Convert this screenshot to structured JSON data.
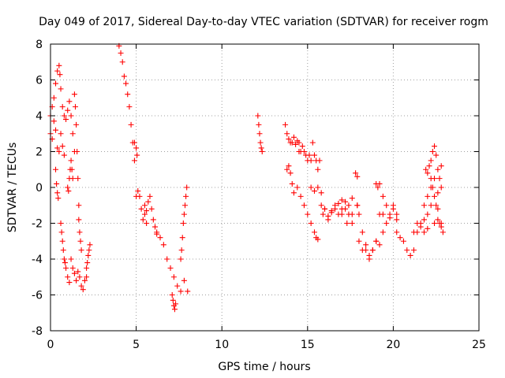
{
  "chart_data": {
    "type": "scatter",
    "title": "Day 049 of 2017, Sidereal Day-to-day VTEC variation (SDTVAR) for receiver rogm",
    "xlabel": "GPS time / hours",
    "ylabel": "SDTVAR / TECUs",
    "xlim": [
      0,
      25
    ],
    "ylim": [
      -8,
      8
    ],
    "xticks": [
      0,
      5,
      10,
      15,
      20,
      25
    ],
    "yticks": [
      -8,
      -6,
      -4,
      -2,
      0,
      2,
      4,
      6,
      8
    ],
    "xtick_labels": [
      "0",
      "5",
      "10",
      "15",
      "20",
      "25"
    ],
    "ytick_labels": [
      "-8",
      "-6",
      "-4",
      "-2",
      "0",
      "2",
      "4",
      "6",
      "8"
    ],
    "grid": true,
    "marker": "+",
    "marker_color": "#ff0000",
    "series": [
      {
        "name": "SDTVAR",
        "tracks": [
          {
            "x": [
              0.0,
              0.1,
              0.2,
              0.3,
              0.4,
              0.5,
              0.55
            ],
            "y": [
              4.0,
              4.5,
              5.0,
              5.8,
              6.5,
              6.8,
              6.3
            ]
          },
          {
            "x": [
              0.0,
              0.1,
              0.2,
              0.3,
              0.4,
              0.5,
              0.6,
              0.7,
              0.8
            ],
            "y": [
              3.0,
              2.7,
              3.7,
              3.2,
              2.2,
              2.0,
              3.0,
              2.3,
              1.8
            ]
          },
          {
            "x": [
              0.6,
              0.7,
              0.8,
              0.9,
              1.0,
              1.1,
              1.2,
              1.3,
              1.4
            ],
            "y": [
              5.5,
              4.5,
              4.0,
              3.8,
              4.3,
              4.8,
              4.0,
              3.0,
              2.0
            ]
          },
          {
            "x": [
              0.3,
              0.35,
              0.4,
              0.45
            ],
            "y": [
              1.0,
              0.2,
              -0.3,
              -0.6
            ]
          },
          {
            "x": [
              0.6,
              0.65,
              0.7,
              0.75,
              0.8,
              0.85,
              0.9,
              1.0,
              1.1
            ],
            "y": [
              -2.0,
              -2.5,
              -3.0,
              -3.5,
              -4.0,
              -4.2,
              -4.5,
              -5.0,
              -5.3
            ]
          },
          {
            "x": [
              1.0,
              1.05,
              1.1,
              1.15,
              1.2,
              1.25,
              1.3
            ],
            "y": [
              0.0,
              -0.2,
              0.5,
              1.0,
              1.5,
              1.0,
              0.5
            ]
          },
          {
            "x": [
              1.2,
              1.3,
              1.4,
              1.5,
              1.6,
              1.7,
              1.8,
              1.9,
              2.0,
              2.1
            ],
            "y": [
              -4.0,
              -4.5,
              -4.8,
              -5.2,
              -4.7,
              -5.0,
              -5.5,
              -5.7,
              -5.2,
              -5.0
            ]
          },
          {
            "x": [
              1.4,
              1.45,
              1.5,
              1.55,
              1.6,
              1.65
            ],
            "y": [
              5.2,
              4.5,
              3.5,
              2.0,
              0.5,
              -1.0
            ]
          },
          {
            "x": [
              1.65,
              1.7,
              1.75,
              1.8
            ],
            "y": [
              -1.8,
              -2.5,
              -3.0,
              -3.5
            ]
          },
          {
            "x": [
              2.1,
              2.15,
              2.2,
              2.25,
              2.3
            ],
            "y": [
              -4.5,
              -4.2,
              -3.8,
              -3.5,
              -3.2
            ]
          },
          {
            "x": [
              4.0,
              4.1,
              4.2,
              4.3,
              4.4,
              4.5,
              4.6,
              4.7,
              4.8,
              4.9
            ],
            "y": [
              7.9,
              7.5,
              7.0,
              6.2,
              5.8,
              5.2,
              4.5,
              3.5,
              2.5,
              1.5
            ]
          },
          {
            "x": [
              4.9,
              5.0,
              5.05
            ],
            "y": [
              2.5,
              2.2,
              1.8
            ]
          },
          {
            "x": [
              5.0,
              5.1,
              5.2,
              5.3,
              5.4,
              5.5,
              5.6
            ],
            "y": [
              -0.5,
              -0.2,
              -0.5,
              -1.2,
              -1.8,
              -1.5,
              -2.0
            ]
          },
          {
            "x": [
              5.5,
              5.6,
              5.7,
              5.8,
              5.9,
              6.0,
              6.1,
              6.2
            ],
            "y": [
              -1.0,
              -1.3,
              -0.8,
              -0.5,
              -1.2,
              -1.8,
              -2.2,
              -2.5
            ]
          },
          {
            "x": [
              6.2,
              6.4,
              6.6,
              6.8,
              7.0,
              7.2,
              7.4,
              7.6,
              7.8,
              8.0
            ],
            "y": [
              -2.6,
              -2.8,
              -3.2,
              -4.0,
              -4.5,
              -5.0,
              -5.5,
              -5.8,
              -5.2,
              -5.8
            ]
          },
          {
            "x": [
              7.1,
              7.15,
              7.2,
              7.25,
              7.3
            ],
            "y": [
              -6.0,
              -6.3,
              -6.6,
              -6.8,
              -6.5
            ]
          },
          {
            "x": [
              7.6,
              7.65,
              7.7,
              7.75,
              7.8,
              7.85,
              7.9,
              7.95
            ],
            "y": [
              -4.0,
              -3.5,
              -2.8,
              -2.0,
              -1.5,
              -1.0,
              -0.5,
              0.0
            ]
          },
          {
            "x": [
              12.1,
              12.15,
              12.2,
              12.25,
              12.3,
              12.35
            ],
            "y": [
              4.0,
              3.5,
              3.0,
              2.5,
              2.2,
              2.0
            ]
          },
          {
            "x": [
              13.7,
              13.8,
              13.9,
              14.0,
              14.1,
              14.2,
              14.3,
              14.4,
              14.5
            ],
            "y": [
              3.5,
              3.0,
              2.7,
              2.5,
              2.5,
              2.8,
              2.4,
              2.6,
              2.0
            ]
          },
          {
            "x": [
              14.5,
              14.6,
              14.7,
              14.8,
              14.9,
              15.0,
              15.1,
              15.2
            ],
            "y": [
              2.5,
              2.0,
              2.3,
              2.0,
              1.8,
              1.5,
              1.8,
              1.5
            ]
          },
          {
            "x": [
              15.3,
              15.4,
              15.5,
              15.6,
              15.7
            ],
            "y": [
              2.5,
              1.8,
              1.5,
              1.0,
              1.5
            ]
          },
          {
            "x": [
              13.8,
              13.9,
              14.0,
              14.1,
              14.2,
              14.4,
              14.6,
              14.8,
              15.0,
              15.2,
              15.4,
              15.5,
              15.6
            ],
            "y": [
              1.0,
              1.2,
              0.8,
              0.2,
              -0.3,
              0.0,
              -0.5,
              -1.0,
              -1.5,
              -2.0,
              -2.5,
              -2.8,
              -2.9
            ]
          },
          {
            "x": [
              15.2,
              15.4,
              15.6,
              15.8
            ],
            "y": [
              0.0,
              -0.2,
              0.0,
              -0.3
            ]
          },
          {
            "x": [
              15.8,
              15.9,
              16.0,
              16.2,
              16.4,
              16.6,
              16.8,
              17.0,
              17.2,
              17.4,
              17.6
            ],
            "y": [
              -1.0,
              -1.5,
              -1.2,
              -1.8,
              -1.3,
              -1.0,
              -1.5,
              -1.2,
              -0.8,
              -1.0,
              -0.6
            ]
          },
          {
            "x": [
              16.0,
              16.2,
              16.4,
              16.6,
              16.8,
              17.0,
              17.2,
              17.4,
              17.6
            ],
            "y": [
              -1.2,
              -1.6,
              -1.4,
              -1.2,
              -0.9,
              -0.7,
              -1.2,
              -1.5,
              -2.0
            ]
          },
          {
            "x": [
              17.0,
              17.3,
              17.6,
              17.9
            ],
            "y": [
              -1.5,
              -2.0,
              -1.5,
              -1.0
            ]
          },
          {
            "x": [
              17.8,
              17.9
            ],
            "y": [
              0.8,
              0.6
            ]
          },
          {
            "x": [
              17.9,
              18.0,
              18.2,
              18.4,
              18.6,
              18.8,
              19.0,
              19.2,
              19.4
            ],
            "y": [
              -1.0,
              -1.5,
              -2.5,
              -3.5,
              -4.0,
              -3.5,
              -3.0,
              -3.2,
              -2.5
            ]
          },
          {
            "x": [
              18.0,
              18.2,
              18.4,
              18.6,
              18.8,
              19.0
            ],
            "y": [
              -3.0,
              -3.5,
              -3.2,
              -3.8,
              -3.5,
              -3.0
            ]
          },
          {
            "x": [
              19.0,
              19.1,
              19.2
            ],
            "y": [
              0.2,
              0.0,
              0.2
            ]
          },
          {
            "x": [
              19.2,
              19.4,
              19.6,
              19.8,
              20.0,
              20.2
            ],
            "y": [
              -1.5,
              -0.5,
              -1.0,
              -1.5,
              -1.2,
              -1.8
            ]
          },
          {
            "x": [
              19.4,
              19.6,
              19.8,
              20.0,
              20.2
            ],
            "y": [
              -1.5,
              -2.0,
              -1.7,
              -1.0,
              -1.5
            ]
          },
          {
            "x": [
              20.2,
              20.4,
              20.6,
              20.8,
              21.0,
              21.2,
              21.4,
              21.6,
              21.8
            ],
            "y": [
              -2.5,
              -2.8,
              -3.0,
              -3.5,
              -3.8,
              -3.5,
              -2.5,
              -2.0,
              -1.8
            ]
          },
          {
            "x": [
              21.2,
              21.4,
              21.6,
              21.8,
              22.0
            ],
            "y": [
              -2.5,
              -2.0,
              -2.2,
              -2.5,
              -2.3
            ]
          },
          {
            "x": [
              21.8,
              22.0,
              22.2,
              22.4,
              22.6,
              22.8
            ],
            "y": [
              -1.0,
              -0.5,
              0.0,
              0.5,
              1.0,
              1.2
            ]
          },
          {
            "x": [
              21.9,
              22.0,
              22.1,
              22.2,
              22.3,
              22.4,
              22.5,
              22.6,
              22.7,
              22.8
            ],
            "y": [
              1.0,
              0.8,
              1.2,
              0.5,
              0.0,
              -0.5,
              -1.0,
              -0.3,
              0.5,
              0.0
            ]
          },
          {
            "x": [
              22.2,
              22.3,
              22.4,
              22.5
            ],
            "y": [
              1.5,
              2.0,
              2.3,
              1.8
            ]
          },
          {
            "x": [
              22.0,
              22.2,
              22.4,
              22.6,
              22.8
            ],
            "y": [
              -1.5,
              -1.0,
              -2.0,
              -1.2,
              -2.0
            ]
          },
          {
            "x": [
              22.6,
              22.7,
              22.8,
              22.9
            ],
            "y": [
              -1.8,
              -2.0,
              -2.2,
              -2.5
            ]
          }
        ]
      }
    ]
  }
}
